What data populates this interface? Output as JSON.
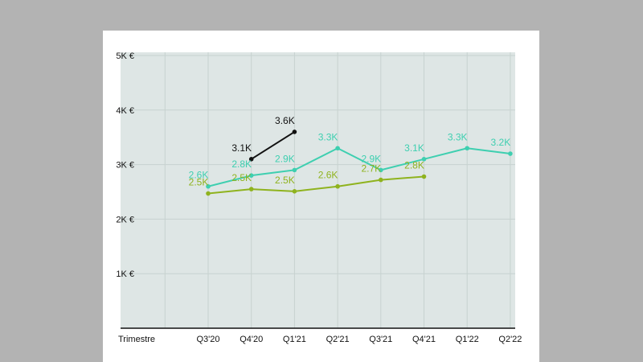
{
  "chart_data": {
    "type": "line",
    "x_axis_title": "Trimestre",
    "categories": [
      "Q3'20",
      "Q4'20",
      "Q1'21",
      "Q2'21",
      "Q3'21",
      "Q4'21",
      "Q1'22",
      "Q2'22"
    ],
    "y_ticks": [
      {
        "value": 5000,
        "label": "5K €"
      },
      {
        "value": 4000,
        "label": "4K €"
      },
      {
        "value": 3000,
        "label": "3K €"
      },
      {
        "value": 2000,
        "label": "2K €"
      },
      {
        "value": 1000,
        "label": "1K €"
      }
    ],
    "ylim": [
      0,
      5000
    ],
    "grid": true,
    "series": [
      {
        "color": "#3ecfb0",
        "values": [
          2600,
          2800,
          2900,
          3300,
          2900,
          3100,
          3300,
          3200
        ],
        "labels": [
          "2.6K",
          "2.8K",
          "2.9K",
          "3.3K",
          "2.9K",
          "3.1K",
          "3.3K",
          "3.2K"
        ]
      },
      {
        "color": "#8fb31e",
        "values": [
          2470,
          2550,
          2510,
          2600,
          2720,
          2780,
          null,
          null
        ],
        "labels": [
          "2.5K",
          "2.5K",
          "2.5K",
          "2.6K",
          "2.7K",
          "2.8K",
          null,
          null
        ]
      },
      {
        "color": "#111111",
        "values": [
          null,
          3100,
          3600,
          null,
          null,
          null,
          null,
          null
        ],
        "labels": [
          null,
          "3.1K",
          "3.6K",
          null,
          null,
          null,
          null,
          null
        ]
      }
    ],
    "colors": {
      "plot_background": "#dee6e5",
      "grid": "#c7d2d0",
      "axis": "#111111"
    }
  }
}
